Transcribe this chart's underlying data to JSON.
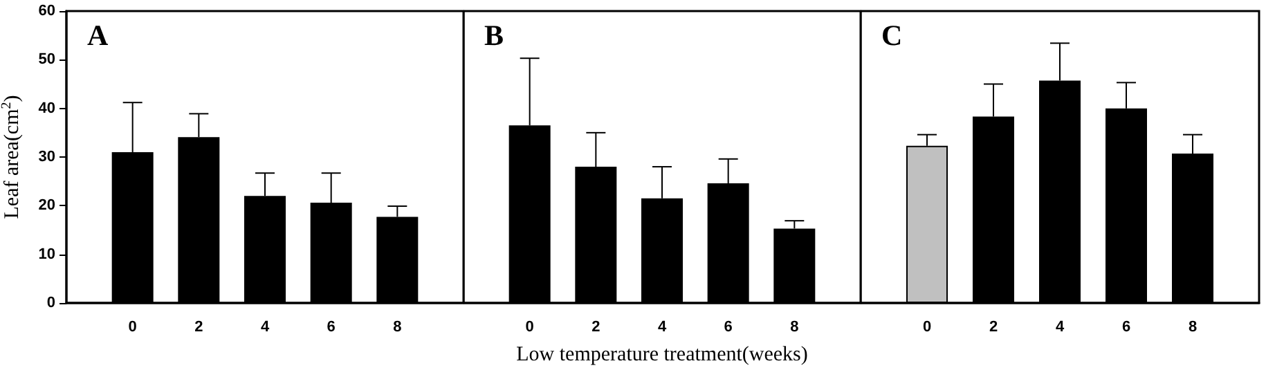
{
  "chart_data": [
    {
      "type": "bar",
      "title": "A",
      "ylabel": "Leaf area(cm$^{2}$)",
      "x": [
        0,
        2,
        4,
        6,
        8
      ],
      "xlim": [
        -2,
        10
      ],
      "xticks": [
        0,
        2,
        4,
        6,
        8
      ],
      "ylim": [
        0,
        60
      ],
      "yticks": [
        0,
        10,
        20,
        30,
        40,
        50,
        60
      ],
      "series": [
        {
          "color": "#000000",
          "values": [
            31.0,
            34.1,
            22.0,
            20.6,
            17.7
          ],
          "errors": [
            [
              31.0,
              41.2
            ],
            [
              34.1,
              38.9
            ],
            [
              22.0,
              26.7
            ],
            [
              20.6,
              26.7
            ],
            [
              17.7,
              19.9
            ]
          ]
        }
      ]
    },
    {
      "type": "bar",
      "title": "B",
      "xlabel": "Low temperature treatment(weeks)",
      "x": [
        0,
        2,
        4,
        6,
        8
      ],
      "xlim": [
        -2,
        10
      ],
      "xticks": [
        0,
        2,
        4,
        6,
        8
      ],
      "ylim": [
        0,
        60
      ],
      "yticks": [
        0,
        10,
        20,
        30,
        40,
        50,
        60
      ],
      "tick_labels": "x",
      "series": [
        {
          "color": "#000000",
          "values": [
            36.5,
            28.0,
            21.5,
            24.6,
            15.3
          ],
          "errors": [
            [
              36.5,
              50.3
            ],
            [
              28.0,
              35.0
            ],
            [
              21.5,
              28.0
            ],
            [
              24.6,
              29.6
            ],
            [
              15.3,
              16.9
            ]
          ]
        }
      ]
    },
    {
      "type": "bar",
      "title": "C",
      "x": [
        0,
        2,
        4,
        6,
        8
      ],
      "xlim": [
        -2,
        10
      ],
      "xticks": [
        0,
        2,
        4,
        6,
        8
      ],
      "ylim": [
        0,
        60
      ],
      "yticks": [
        0,
        10,
        20,
        30,
        40,
        50,
        60
      ],
      "tick_labels": "x",
      "series": [
        {
          "colors": [
            "#c0c0c0",
            "#000000",
            "#000000",
            "#000000",
            "#000000"
          ],
          "values": [
            32.3,
            38.3,
            45.7,
            40.0,
            30.7
          ],
          "errors": [
            [
              32.3,
              34.6
            ],
            [
              38.3,
              45.0
            ],
            [
              45.7,
              53.4
            ],
            [
              40.0,
              45.3
            ],
            [
              30.7,
              34.6
            ]
          ]
        }
      ]
    }
  ]
}
